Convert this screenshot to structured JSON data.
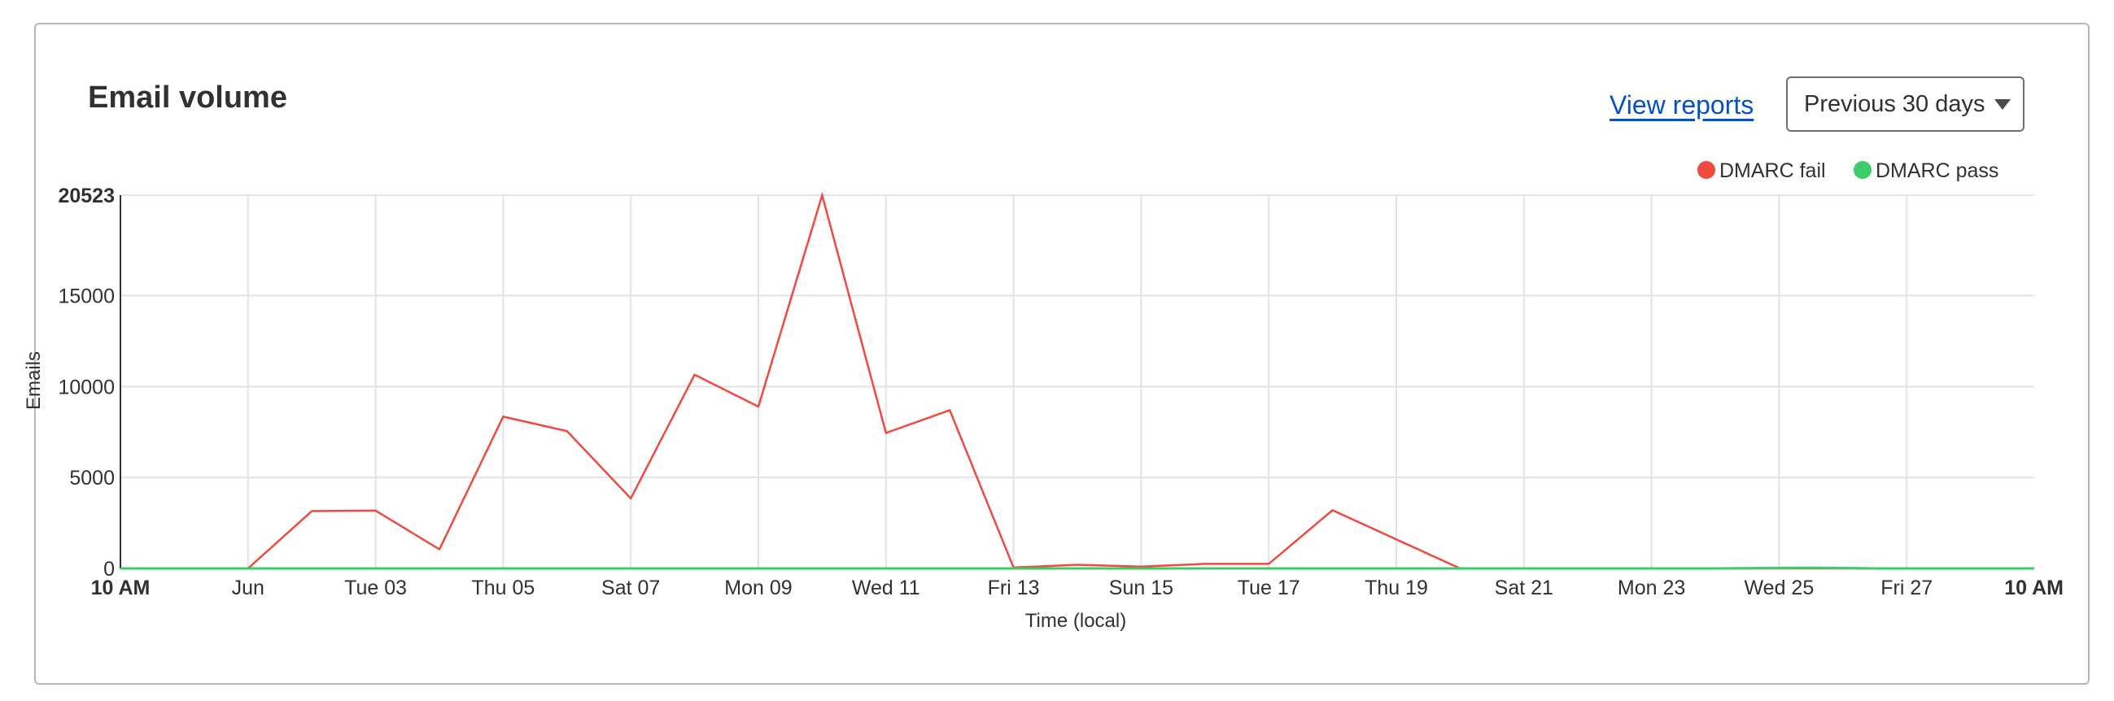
{
  "header": {
    "title": "Email volume",
    "view_reports_label": "View reports",
    "range_label": "Previous 30 days"
  },
  "colors": {
    "dmarc_fail": "#f0493e",
    "dmarc_pass": "#3ecb6a",
    "grid": "#e3e3e3"
  },
  "chart_data": {
    "type": "line",
    "title": "Email volume",
    "xlabel": "Time (local)",
    "ylabel": "Emails",
    "ylim": [
      0,
      20523
    ],
    "y_ticks": [
      {
        "value": 0,
        "label": "0"
      },
      {
        "value": 5000,
        "label": "5000"
      },
      {
        "value": 10000,
        "label": "10000"
      },
      {
        "value": 15000,
        "label": "15000"
      },
      {
        "value": 20523,
        "label": "20523"
      }
    ],
    "x_ticks": [
      "10 AM",
      "Jun",
      "Tue 03",
      "Thu 05",
      "Sat 07",
      "Mon 09",
      "Wed 11",
      "Fri 13",
      "Sun 15",
      "Tue 17",
      "Thu 19",
      "Sat 21",
      "Mon 23",
      "Wed 25",
      "Fri 27",
      "10 AM"
    ],
    "x_range_days": [
      0,
      30
    ],
    "legend_position": "top-right",
    "grid": true,
    "series": [
      {
        "name": "DMARC fail",
        "color": "#f0493e",
        "points": [
          [
            0,
            0
          ],
          [
            1,
            0
          ],
          [
            2,
            0
          ],
          [
            3,
            3150
          ],
          [
            4,
            3180
          ],
          [
            5,
            1050
          ],
          [
            6,
            8350
          ],
          [
            7,
            7550
          ],
          [
            8,
            3850
          ],
          [
            9,
            10650
          ],
          [
            10,
            8900
          ],
          [
            11,
            20523
          ],
          [
            12,
            7450
          ],
          [
            13,
            8700
          ],
          [
            14,
            50
          ],
          [
            15,
            200
          ],
          [
            16,
            100
          ],
          [
            17,
            250
          ],
          [
            18,
            250
          ],
          [
            19,
            3200
          ],
          [
            20,
            1600
          ],
          [
            21,
            0
          ],
          [
            22,
            0
          ],
          [
            23,
            0
          ],
          [
            24,
            0
          ],
          [
            25,
            0
          ],
          [
            26,
            0
          ],
          [
            27,
            0
          ],
          [
            28,
            0
          ],
          [
            29,
            0
          ],
          [
            30,
            0
          ]
        ]
      },
      {
        "name": "DMARC pass",
        "color": "#3ecb6a",
        "points": [
          [
            0,
            0
          ],
          [
            5,
            0
          ],
          [
            10,
            0
          ],
          [
            15,
            0
          ],
          [
            20,
            0
          ],
          [
            25,
            0
          ],
          [
            26.5,
            40
          ],
          [
            27.5,
            0
          ],
          [
            30,
            0
          ]
        ]
      }
    ]
  }
}
